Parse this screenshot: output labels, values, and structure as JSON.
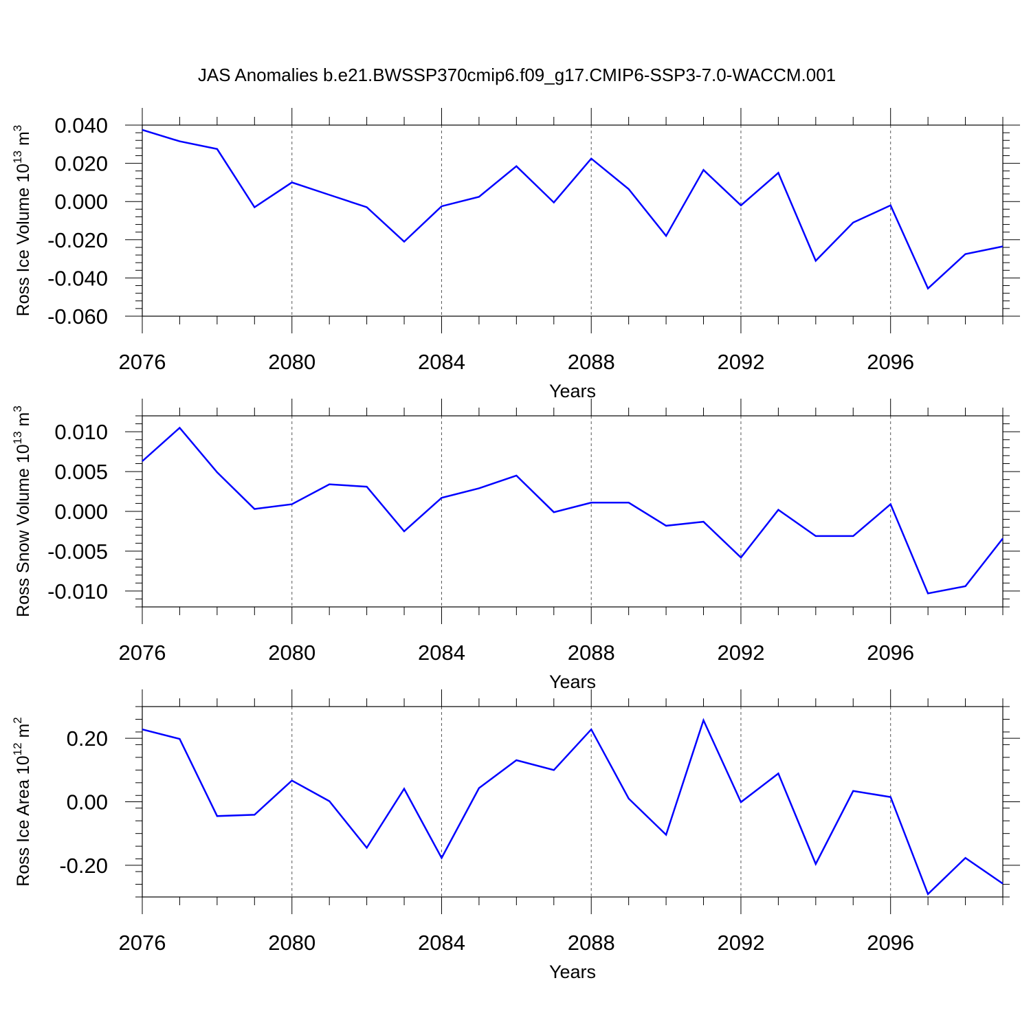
{
  "title": "JAS Anomalies b.e21.BWSSP370cmip6.f09_g17.CMIP6-SSP3-7.0-WACCM.001",
  "line_color": "#0000ff",
  "chart_data": [
    {
      "type": "line",
      "ylabel": "Ross Ice Volume 10",
      "ylabel_exp": "13",
      "ylabel_unit": "m",
      "ylabel_unit_exp": "3",
      "xlabel": "Years",
      "xlim": [
        2076,
        2099
      ],
      "ylim": [
        -0.06,
        0.04
      ],
      "yticks": [
        0.04,
        0.02,
        0.0,
        -0.02,
        -0.04,
        -0.06
      ],
      "ytick_labels": [
        "0.040",
        "0.020",
        "0.000",
        "-0.020",
        "-0.040",
        "-0.060"
      ],
      "xticks": [
        2076,
        2080,
        2084,
        2088,
        2092,
        2096
      ],
      "xtick_labels": [
        "2076",
        "2080",
        "2084",
        "2088",
        "2092",
        "2096"
      ],
      "x": [
        2076,
        2077,
        2078,
        2079,
        2080,
        2081,
        2082,
        2083,
        2084,
        2085,
        2086,
        2087,
        2088,
        2089,
        2090,
        2091,
        2092,
        2093,
        2094,
        2095,
        2096,
        2097,
        2098,
        2099
      ],
      "values": [
        0.0375,
        0.0315,
        0.0275,
        -0.003,
        0.01,
        0.0035,
        -0.003,
        -0.021,
        -0.0025,
        0.0025,
        0.0185,
        -0.0005,
        0.0225,
        0.0065,
        -0.018,
        0.0165,
        -0.002,
        0.015,
        -0.031,
        -0.011,
        -0.002,
        -0.0455,
        -0.0275,
        -0.0235
      ]
    },
    {
      "type": "line",
      "ylabel": "Ross Snow Volume 10",
      "ylabel_exp": "13",
      "ylabel_unit": "m",
      "ylabel_unit_exp": "3",
      "xlabel": "Years",
      "xlim": [
        2076,
        2099
      ],
      "ylim": [
        -0.012,
        0.012
      ],
      "yticks": [
        0.01,
        0.005,
        0.0,
        -0.005,
        -0.01
      ],
      "ytick_labels": [
        "0.010",
        "0.005",
        "0.000",
        "-0.005",
        "-0.010"
      ],
      "xticks": [
        2076,
        2080,
        2084,
        2088,
        2092,
        2096
      ],
      "xtick_labels": [
        "2076",
        "2080",
        "2084",
        "2088",
        "2092",
        "2096"
      ],
      "x": [
        2076,
        2077,
        2078,
        2079,
        2080,
        2081,
        2082,
        2083,
        2084,
        2085,
        2086,
        2087,
        2088,
        2089,
        2090,
        2091,
        2092,
        2093,
        2094,
        2095,
        2096,
        2097,
        2098,
        2099
      ],
      "values": [
        0.0063,
        0.0105,
        0.0049,
        0.0003,
        0.0009,
        0.0034,
        0.0031,
        -0.0025,
        0.0017,
        0.0029,
        0.0045,
        -0.0001,
        0.0011,
        0.0011,
        -0.0018,
        -0.0013,
        -0.0058,
        0.0002,
        -0.0031,
        -0.0031,
        0.0009,
        -0.0103,
        -0.0094,
        -0.0034
      ]
    },
    {
      "type": "line",
      "ylabel": "Ross Ice Area 10",
      "ylabel_exp": "12",
      "ylabel_unit": "m",
      "ylabel_unit_exp": "2",
      "xlabel": "Years",
      "xlim": [
        2076,
        2099
      ],
      "ylim": [
        -0.3,
        0.3
      ],
      "yticks": [
        0.2,
        0.0,
        -0.2
      ],
      "ytick_labels": [
        "0.20",
        "0.00",
        "-0.20"
      ],
      "xticks": [
        2076,
        2080,
        2084,
        2088,
        2092,
        2096
      ],
      "xtick_labels": [
        "2076",
        "2080",
        "2084",
        "2088",
        "2092",
        "2096"
      ],
      "x": [
        2076,
        2077,
        2078,
        2079,
        2080,
        2081,
        2082,
        2083,
        2084,
        2085,
        2086,
        2087,
        2088,
        2089,
        2090,
        2091,
        2092,
        2093,
        2094,
        2095,
        2096,
        2097,
        2098,
        2099
      ],
      "values": [
        0.228,
        0.198,
        -0.045,
        -0.041,
        0.067,
        0.002,
        -0.145,
        0.041,
        -0.177,
        0.043,
        0.131,
        0.1,
        0.228,
        0.01,
        -0.104,
        0.257,
        -0.001,
        0.089,
        -0.196,
        0.034,
        0.015,
        -0.291,
        -0.177,
        -0.258
      ]
    }
  ]
}
